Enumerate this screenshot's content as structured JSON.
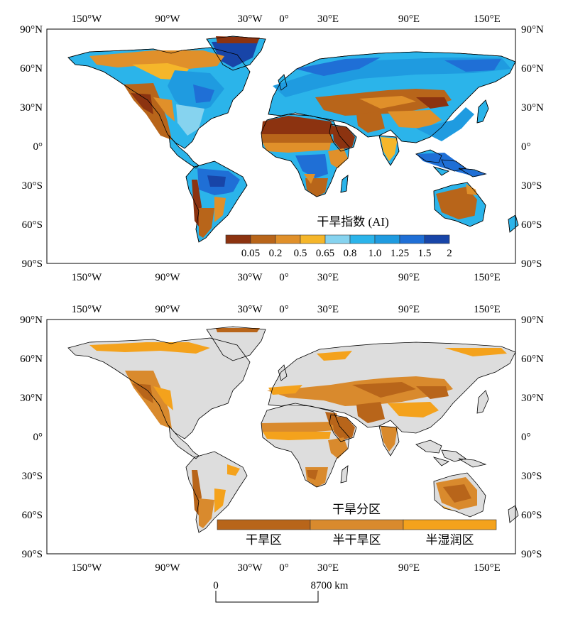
{
  "coordinate_labels": {
    "longitudes": [
      "150°W",
      "90°W",
      "30°W",
      "0°",
      "30°E",
      "90°E",
      "150°E"
    ],
    "latitudes": [
      "90°N",
      "60°N",
      "30°N",
      "0°",
      "30°S",
      "60°S",
      "90°S"
    ]
  },
  "map_top": {
    "legend_title": "干旱指数 (AI)",
    "legend_ticks": [
      "0.05",
      "0.2",
      "0.5",
      "0.65",
      "0.8",
      "1.0",
      "1.25",
      "1.5",
      "2"
    ],
    "legend_colors": [
      "#8c3310",
      "#b8651a",
      "#e0902a",
      "#f5b62a",
      "#86d3ef",
      "#2bb4ea",
      "#1f9be0",
      "#1f6fd6",
      "#1845a8"
    ]
  },
  "map_bottom": {
    "legend_title": "干旱分区",
    "classes": [
      {
        "label": "干旱区",
        "color": "#b8651a"
      },
      {
        "label": "半干旱区",
        "color": "#d98a2d"
      },
      {
        "label": "半湿润区",
        "color": "#f4a21c"
      }
    ],
    "other_land_color": "#dddddd"
  },
  "scale_bar": {
    "start_label": "0",
    "end_label": "8700 km"
  }
}
